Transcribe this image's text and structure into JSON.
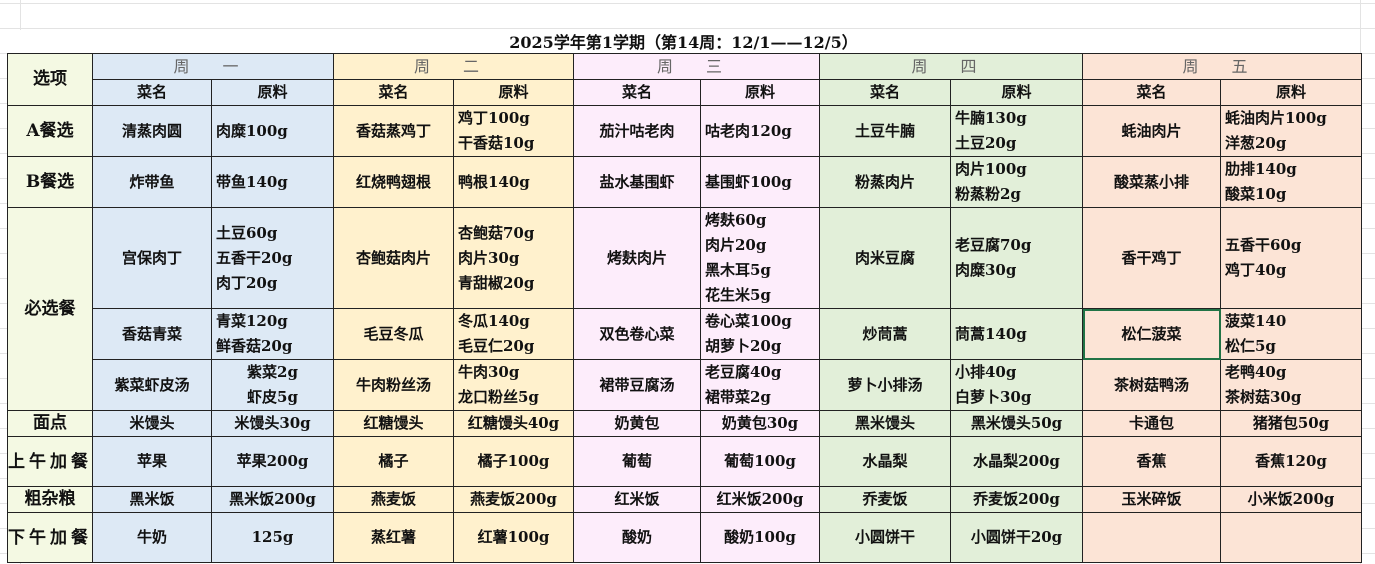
{
  "title": "2025学年第1学期（第14周：12/1——12/5）",
  "header": {
    "option_label": "选项",
    "dish_label": "菜名",
    "ingredient_label": "原料"
  },
  "row_labels": [
    "A餐选",
    "B餐选",
    "必选餐",
    "面点",
    "上午加餐",
    "粗杂粮",
    "下午加餐"
  ],
  "colors": {
    "label": "#f4f9e3",
    "days": [
      "#dde9f5",
      "#fff1cd",
      "#fdedfb",
      "#e2efd9",
      "#fce4d6"
    ],
    "selection": "#217346"
  },
  "days": [
    {
      "name": "周 一",
      "rows": [
        {
          "dish": "清蒸肉圆",
          "ingredients": [
            "肉糜100g"
          ]
        },
        {
          "dish": "炸带鱼",
          "ingredients": [
            "带鱼140g"
          ]
        },
        {
          "dish": "宫保肉丁",
          "ingredients": [
            "土豆60g",
            "五香干20g",
            "肉丁20g"
          ]
        },
        {
          "dish": "香菇青菜",
          "ingredients": [
            "青菜120g",
            "鲜香菇20g"
          ]
        },
        {
          "dish": "紫菜虾皮汤",
          "ingredients": [
            "紫菜2g",
            "虾皮5g"
          ],
          "center": true
        },
        {
          "dish": "米馒头",
          "ingredients": [
            "米馒头30g"
          ],
          "center": true
        },
        {
          "dish": "苹果",
          "ingredients": [
            "苹果200g"
          ],
          "center": true
        },
        {
          "dish": "黑米饭",
          "ingredients": [
            "黑米饭200g"
          ],
          "center": true
        },
        {
          "dish": "牛奶",
          "ingredients": [
            "125g"
          ],
          "center": true
        }
      ]
    },
    {
      "name": "周 二",
      "rows": [
        {
          "dish": "香菇蒸鸡丁",
          "ingredients": [
            "鸡丁100g",
            "干香菇10g"
          ]
        },
        {
          "dish": "红烧鸭翅根",
          "ingredients": [
            "鸭根140g"
          ]
        },
        {
          "dish": "杏鲍菇肉片",
          "ingredients": [
            "杏鲍菇70g",
            "肉片30g",
            "青甜椒20g"
          ]
        },
        {
          "dish": "毛豆冬瓜",
          "ingredients": [
            "冬瓜140g",
            "毛豆仁20g"
          ]
        },
        {
          "dish": "牛肉粉丝汤",
          "ingredients": [
            "牛肉30g",
            "龙口粉丝5g"
          ]
        },
        {
          "dish": "红糖馒头",
          "ingredients": [
            "红糖馒头40g"
          ],
          "center": true
        },
        {
          "dish": "橘子",
          "ingredients": [
            "橘子100g"
          ],
          "center": true
        },
        {
          "dish": "燕麦饭",
          "ingredients": [
            "燕麦饭200g"
          ],
          "center": true
        },
        {
          "dish": "蒸红薯",
          "ingredients": [
            "红薯100g"
          ],
          "center": true
        }
      ]
    },
    {
      "name": "周 三",
      "rows": [
        {
          "dish": "茄汁咕老肉",
          "ingredients": [
            "咕老肉120g"
          ]
        },
        {
          "dish": "盐水基围虾",
          "ingredients": [
            "基围虾100g"
          ]
        },
        {
          "dish": "烤麸肉片",
          "ingredients": [
            "烤麸60g",
            "肉片20g",
            "黑木耳5g",
            "花生米5g"
          ]
        },
        {
          "dish": "双色卷心菜",
          "ingredients": [
            "卷心菜100g",
            "胡萝卜20g"
          ]
        },
        {
          "dish": "裙带豆腐汤",
          "ingredients": [
            "老豆腐40g",
            "裙带菜2g"
          ]
        },
        {
          "dish": "奶黄包",
          "ingredients": [
            "奶黄包30g"
          ],
          "center": true
        },
        {
          "dish": "葡萄",
          "ingredients": [
            "葡萄100g"
          ],
          "center": true
        },
        {
          "dish": "红米饭",
          "ingredients": [
            "红米饭200g"
          ],
          "center": true
        },
        {
          "dish": "酸奶",
          "ingredients": [
            "酸奶100g"
          ],
          "center": true
        }
      ]
    },
    {
      "name": "周 四",
      "rows": [
        {
          "dish": "土豆牛腩",
          "ingredients": [
            "牛腩130g",
            "土豆20g"
          ]
        },
        {
          "dish": "粉蒸肉片",
          "ingredients": [
            "肉片100g",
            "粉蒸粉2g"
          ]
        },
        {
          "dish": "肉米豆腐",
          "ingredients": [
            "老豆腐70g",
            "肉糜30g"
          ]
        },
        {
          "dish": "炒茼蒿",
          "ingredients": [
            "茼蒿140g"
          ]
        },
        {
          "dish": "萝卜小排汤",
          "ingredients": [
            "小排40g",
            "白萝卜30g"
          ]
        },
        {
          "dish": "黑米馒头",
          "ingredients": [
            "黑米馒头50g"
          ],
          "center": true
        },
        {
          "dish": "水晶梨",
          "ingredients": [
            "水晶梨200g"
          ],
          "center": true
        },
        {
          "dish": "乔麦饭",
          "ingredients": [
            "乔麦饭200g"
          ],
          "center": true
        },
        {
          "dish": "小圆饼干",
          "ingredients": [
            "小圆饼干20g"
          ],
          "center": true
        }
      ]
    },
    {
      "name": "周 五",
      "rows": [
        {
          "dish": "蚝油肉片",
          "ingredients": [
            "蚝油肉片100g",
            "洋葱20g"
          ]
        },
        {
          "dish": "酸菜蒸小排",
          "ingredients": [
            "肋排140g",
            "酸菜10g"
          ]
        },
        {
          "dish": "香干鸡丁",
          "ingredients": [
            "五香干60g",
            "鸡丁40g"
          ]
        },
        {
          "dish": "松仁菠菜",
          "ingredients": [
            "菠菜140",
            "松仁5g"
          ],
          "selected": true
        },
        {
          "dish": "茶树菇鸭汤",
          "ingredients": [
            "老鸭40g",
            "茶树菇30g"
          ]
        },
        {
          "dish": "卡通包",
          "ingredients": [
            "猪猪包50g"
          ],
          "center": true
        },
        {
          "dish": "香蕉",
          "ingredients": [
            "香蕉120g"
          ],
          "center": true
        },
        {
          "dish": "玉米碎饭",
          "ingredients": [
            "小米饭200g"
          ],
          "center": true
        },
        {
          "dish": "",
          "ingredients": []
        }
      ]
    }
  ]
}
